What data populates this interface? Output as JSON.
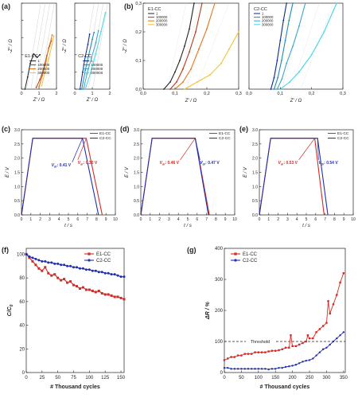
{
  "colors": {
    "e1": "#d42a24",
    "c2": "#1f2fb0",
    "black": "#222222",
    "orange": "#e8741a",
    "yellow": "#f3c232",
    "darkblue": "#0d2a8a",
    "teal": "#1c88b8",
    "cyan": "#3fd7e6",
    "threshold": "#222222"
  },
  "chart_data": [
    {
      "panel": "a",
      "type": "line",
      "xlabel": "Z' / Ω",
      "ylabel": "-Z'' / Ω",
      "subplots": [
        {
          "legend_title": "E1-CC",
          "legend": [
            "1",
            "100000",
            "200000",
            "300000"
          ],
          "xlim": [
            0,
            2
          ],
          "xticks": [
            "0",
            "1",
            "2"
          ],
          "yticks": [
            "0",
            "2",
            "4",
            "6",
            "8",
            "10"
          ],
          "ylim": [
            0,
            10
          ],
          "series": [
            {
              "name": "1",
              "color": "#222222",
              "x": [
                0.2,
                0.35,
                0.5,
                0.7,
                0.9,
                1.05
              ],
              "y": [
                0,
                1.4,
                3.0,
                4.1,
                3.7,
                4.0
              ]
            },
            {
              "name": "100000",
              "color": "#b03a1a",
              "x": [
                0.85,
                1.05,
                1.25,
                1.45,
                1.6,
                1.7
              ],
              "y": [
                0.2,
                1.1,
                2.2,
                3.9,
                5.0,
                5.6
              ]
            },
            {
              "name": "200000",
              "color": "#e8741a",
              "x": [
                1.0,
                1.2,
                1.4,
                1.55,
                1.7,
                1.75
              ],
              "y": [
                0.3,
                1.6,
                3.2,
                4.8,
                5.8,
                6.3
              ]
            },
            {
              "name": "300000",
              "color": "#f3c232",
              "x": [
                1.15,
                1.35,
                1.55,
                1.75,
                1.85
              ],
              "y": [
                0.4,
                2.0,
                3.5,
                5.2,
                6.2
              ]
            }
          ]
        },
        {
          "legend_title": "C2-CC",
          "legend": [
            "1",
            "100000",
            "200000",
            "300000"
          ],
          "xlim": [
            0,
            2
          ],
          "xticks": [
            "0",
            "1",
            "2"
          ],
          "yticks": [
            "0",
            "2",
            "4",
            "6",
            "8",
            "10"
          ],
          "ylim": [
            0,
            10
          ],
          "series": [
            {
              "name": "1",
              "color": "#0d2a8a",
              "x": [
                0.3,
                0.45,
                0.6,
                0.75,
                0.85
              ],
              "y": [
                0,
                2.0,
                3.8,
                5.2,
                6.4
              ]
            },
            {
              "name": "100000",
              "color": "#1c88b8",
              "x": [
                0.4,
                0.6,
                0.8,
                1.0,
                1.1
              ],
              "y": [
                0,
                2.2,
                4.0,
                5.8,
                6.6
              ]
            },
            {
              "name": "200000",
              "color": "#3aa6c8",
              "x": [
                0.5,
                0.7,
                0.95,
                1.2,
                1.35
              ],
              "y": [
                0,
                1.8,
                3.6,
                5.4,
                6.8
              ]
            },
            {
              "name": "300000",
              "color": "#3fd7e6",
              "x": [
                0.6,
                0.9,
                1.2,
                1.5,
                1.75
              ],
              "y": [
                0,
                1.9,
                4.1,
                6.7,
                8.9
              ]
            }
          ]
        }
      ]
    },
    {
      "panel": "b",
      "type": "line",
      "xlabel": "Z' / Ω",
      "ylabel": "-Z'' / Ω",
      "subplots": [
        {
          "legend_title": "E1-CC",
          "legend": [
            "1",
            "100000",
            "200000",
            "300000"
          ],
          "xlim": [
            0,
            0.3
          ],
          "ylim": [
            0,
            0.3
          ],
          "xticks": [
            "0,0",
            "0,1",
            "0,2",
            "0,3"
          ],
          "yticks": [
            "0,0",
            "0,1",
            "0,2",
            "0,3"
          ],
          "series": [
            {
              "name": "1",
              "color": "#222222",
              "x": [
                0.065,
                0.085,
                0.1,
                0.115,
                0.13,
                0.145,
                0.16
              ],
              "y": [
                0,
                0.025,
                0.06,
                0.1,
                0.15,
                0.21,
                0.3
              ]
            },
            {
              "name": "100000",
              "color": "#b03a1a",
              "x": [
                0.085,
                0.105,
                0.125,
                0.145,
                0.165,
                0.185
              ],
              "y": [
                0,
                0.025,
                0.07,
                0.13,
                0.2,
                0.3
              ]
            },
            {
              "name": "200000",
              "color": "#e8741a",
              "x": [
                0.1,
                0.125,
                0.15,
                0.175,
                0.2,
                0.225
              ],
              "y": [
                0,
                0.025,
                0.07,
                0.14,
                0.21,
                0.3
              ]
            },
            {
              "name": "300000",
              "color": "#f3c232",
              "x": [
                0.13,
                0.17,
                0.21,
                0.245,
                0.27,
                0.3
              ],
              "y": [
                0,
                0.025,
                0.05,
                0.09,
                0.14,
                0.2
              ]
            }
          ]
        },
        {
          "legend_title": "C2-CC",
          "legend": [
            "1",
            "100000",
            "200000",
            "300000"
          ],
          "xlim": [
            0,
            0.3
          ],
          "ylim": [
            0,
            0.3
          ],
          "xticks": [
            "0,0",
            "0,1",
            "0,2",
            "0,3"
          ],
          "series": [
            {
              "name": "1",
              "color": "#0d2a8a",
              "x": [
                0.07,
                0.08,
                0.09,
                0.1,
                0.11,
                0.12
              ],
              "y": [
                0,
                0.04,
                0.1,
                0.17,
                0.24,
                0.3
              ]
            },
            {
              "name": "100000",
              "color": "#1c88b8",
              "x": [
                0.08,
                0.092,
                0.104,
                0.116,
                0.128,
                0.14
              ],
              "y": [
                0,
                0.04,
                0.1,
                0.17,
                0.24,
                0.3
              ]
            },
            {
              "name": "200000",
              "color": "#3aa6c8",
              "x": [
                0.09,
                0.105,
                0.12,
                0.14,
                0.16,
                0.18
              ],
              "y": [
                0,
                0.035,
                0.09,
                0.15,
                0.22,
                0.3
              ]
            },
            {
              "name": "300000",
              "color": "#3fd7e6",
              "x": [
                0.1,
                0.13,
                0.16,
                0.2,
                0.24,
                0.28
              ],
              "y": [
                0,
                0.025,
                0.06,
                0.12,
                0.2,
                0.3
              ]
            }
          ]
        }
      ]
    },
    {
      "panel": "c",
      "type": "line",
      "xlabel": "t / s",
      "ylabel": "E / V",
      "xlim": [
        0,
        10
      ],
      "ylim": [
        0,
        3.0
      ],
      "xticks": [
        "0",
        "1",
        "2",
        "3",
        "4",
        "5",
        "6",
        "7",
        "8",
        "9",
        "10"
      ],
      "yticks": [
        "0.0",
        "0.5",
        "1.0",
        "1.5",
        "2.0",
        "2.5",
        "3.0"
      ],
      "legend": [
        "E1-CC",
        "C2-CC"
      ],
      "series": [
        {
          "name": "E1-CC",
          "color": "#d42a24",
          "x": [
            0,
            1.2,
            6.9,
            8.6
          ],
          "y": [
            0,
            2.7,
            2.7,
            0
          ]
        },
        {
          "name": "C2-CC",
          "color": "#1f2fb0",
          "x": [
            0,
            1.2,
            6.5,
            8.2
          ],
          "y": [
            0,
            2.7,
            2.7,
            0
          ]
        }
      ],
      "annotations": [
        {
          "prefix": "V",
          "sub": "dr",
          "value": ": 0.41 V",
          "series": "C2-CC"
        },
        {
          "prefix": "V",
          "sub": "dr",
          "value": ": 0.32 V",
          "series": "E1-CC"
        }
      ]
    },
    {
      "panel": "d",
      "type": "line",
      "xlabel": "t / s",
      "ylabel": "E / V",
      "xlim": [
        0,
        10
      ],
      "ylim": [
        0,
        3.0
      ],
      "xticks": [
        "0",
        "1",
        "2",
        "3",
        "4",
        "5",
        "6",
        "7",
        "8",
        "9",
        "10"
      ],
      "yticks": [
        "0.0",
        "0.5",
        "1.0",
        "1.5",
        "2.0",
        "2.5",
        "3.0"
      ],
      "legend": [
        "E1-CC",
        "C2-CC"
      ],
      "series": [
        {
          "name": "E1-CC",
          "color": "#d42a24",
          "x": [
            0,
            1.2,
            5.8,
            7.3
          ],
          "y": [
            0,
            2.7,
            2.7,
            0
          ]
        },
        {
          "name": "C2-CC",
          "color": "#1f2fb0",
          "x": [
            0,
            1.2,
            5.8,
            7.2
          ],
          "y": [
            0,
            2.7,
            2.7,
            0
          ]
        }
      ],
      "annotations": [
        {
          "prefix": "V",
          "sub": "dr",
          "value": ": 0.46 V",
          "series": "E1-CC"
        },
        {
          "prefix": "V",
          "sub": "dr",
          "value": ": 0.47 V",
          "series": "C2-CC"
        }
      ]
    },
    {
      "panel": "e",
      "type": "line",
      "xlabel": "t / s",
      "ylabel": "E / V",
      "xlim": [
        0,
        10
      ],
      "ylim": [
        0,
        3.0
      ],
      "xticks": [
        "0",
        "1",
        "2",
        "3",
        "4",
        "5",
        "6",
        "7",
        "8",
        "9",
        "10"
      ],
      "yticks": [
        "0.0",
        "0.5",
        "1.0",
        "1.5",
        "2.0",
        "2.5",
        "3.0"
      ],
      "legend": [
        "E1-CC",
        "C2-CC"
      ],
      "series": [
        {
          "name": "E1-CC",
          "color": "#d42a24",
          "x": [
            0,
            1.2,
            5.9,
            6.9
          ],
          "y": [
            0,
            2.7,
            2.7,
            0
          ]
        },
        {
          "name": "C2-CC",
          "color": "#1f2fb0",
          "x": [
            0,
            1.2,
            6.2,
            7.3
          ],
          "y": [
            0,
            2.7,
            2.7,
            0
          ]
        }
      ],
      "annotations": [
        {
          "prefix": "V",
          "sub": "dr",
          "value": ": 0.53 V",
          "series": "E1-CC"
        },
        {
          "prefix": "V",
          "sub": "dr",
          "value": ": 0.54 V",
          "series": "C2-CC"
        }
      ]
    },
    {
      "panel": "f",
      "type": "line",
      "xlabel": "# Thousand cycles",
      "ylabel": "C/C",
      "ylabel_sub": "0",
      "xlim": [
        0,
        155
      ],
      "ylim": [
        0,
        105
      ],
      "xticks": [
        "0",
        "25",
        "50",
        "75",
        "100",
        "125",
        "150"
      ],
      "yticks": [
        "0",
        "20",
        "40",
        "60",
        "80",
        "100"
      ],
      "legend": [
        "E1-CC",
        "C2-CC"
      ],
      "series": [
        {
          "name": "E1-CC",
          "color": "#d42a24",
          "marker": "square",
          "x": [
            0,
            5,
            10,
            15,
            20,
            25,
            30,
            35,
            40,
            45,
            50,
            55,
            60,
            65,
            70,
            75,
            80,
            85,
            90,
            95,
            100,
            105,
            110,
            115,
            120,
            125,
            130,
            135,
            140,
            145,
            150,
            155
          ],
          "y": [
            100,
            97,
            94,
            91,
            88,
            86,
            89,
            84,
            82,
            83,
            80,
            78,
            79,
            76,
            77,
            74,
            73,
            71,
            72,
            70,
            70,
            69,
            68,
            69,
            67,
            66,
            66,
            65,
            64,
            64,
            63,
            62
          ]
        },
        {
          "name": "C2-CC",
          "color": "#1f2fb0",
          "marker": "circle",
          "x": [
            0,
            5,
            10,
            15,
            20,
            25,
            30,
            35,
            40,
            45,
            50,
            55,
            60,
            65,
            70,
            75,
            80,
            85,
            90,
            95,
            100,
            105,
            110,
            115,
            120,
            125,
            130,
            135,
            140,
            145,
            150,
            155
          ],
          "y": [
            100,
            98,
            97,
            96,
            95,
            94,
            94,
            93,
            93,
            92,
            92,
            91,
            91,
            90,
            90,
            89,
            89,
            88,
            88,
            87,
            87,
            86,
            86,
            85,
            85,
            84,
            84,
            83,
            83,
            82,
            81,
            81
          ]
        }
      ]
    },
    {
      "panel": "g",
      "type": "line",
      "xlabel": "# Thousand cycles",
      "ylabel": "ΔR / %",
      "xlim": [
        0,
        355
      ],
      "ylim": [
        0,
        400
      ],
      "xticks": [
        "0",
        "50",
        "100",
        "150",
        "200",
        "250",
        "300",
        "350"
      ],
      "yticks": [
        "0",
        "100",
        "200",
        "300",
        "400"
      ],
      "legend": [
        "E1-CC",
        "C2-CC"
      ],
      "threshold": {
        "label": "Threshold",
        "y": 100
      },
      "series": [
        {
          "name": "E1-CC",
          "color": "#d42a24",
          "marker": "square",
          "x": [
            0,
            10,
            20,
            30,
            40,
            50,
            60,
            70,
            80,
            90,
            100,
            110,
            120,
            130,
            140,
            150,
            160,
            170,
            180,
            190,
            195,
            200,
            210,
            220,
            230,
            240,
            245,
            250,
            260,
            270,
            280,
            290,
            300,
            305,
            310,
            320,
            330,
            340,
            350
          ],
          "y": [
            40,
            45,
            50,
            50,
            55,
            55,
            60,
            60,
            60,
            65,
            65,
            65,
            65,
            68,
            70,
            70,
            72,
            75,
            80,
            80,
            120,
            85,
            85,
            90,
            95,
            100,
            120,
            110,
            110,
            130,
            140,
            150,
            160,
            230,
            190,
            220,
            250,
            290,
            320
          ]
        },
        {
          "name": "C2-CC",
          "color": "#1f2fb0",
          "marker": "circle",
          "x": [
            0,
            10,
            20,
            30,
            40,
            50,
            60,
            70,
            80,
            90,
            100,
            110,
            120,
            130,
            140,
            150,
            160,
            170,
            180,
            190,
            200,
            210,
            220,
            230,
            240,
            250,
            260,
            270,
            280,
            290,
            300,
            310,
            320,
            330,
            340,
            350
          ],
          "y": [
            15,
            15,
            12,
            12,
            12,
            12,
            12,
            12,
            12,
            12,
            12,
            12,
            12,
            10,
            12,
            12,
            15,
            15,
            18,
            20,
            22,
            25,
            30,
            35,
            38,
            40,
            45,
            55,
            65,
            75,
            80,
            90,
            100,
            110,
            120,
            130
          ]
        }
      ]
    }
  ]
}
